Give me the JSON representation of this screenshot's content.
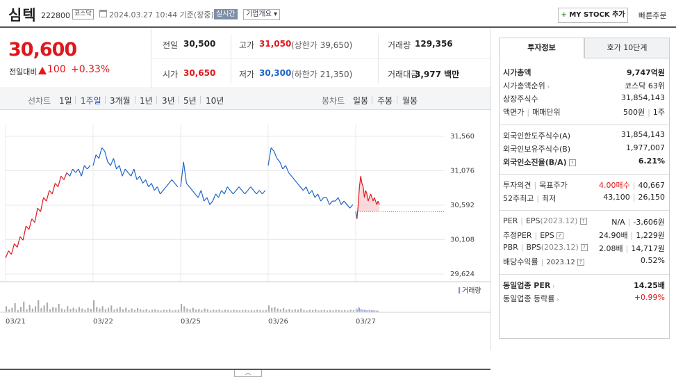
{
  "header": {
    "name": "심텍",
    "code": "222800",
    "market": "코스닥",
    "datetime": "2024.03.27 10:44 기준(장중)",
    "realtime": "실시간",
    "company_overview": "기업개요 ▾",
    "mystock_plus": "+",
    "mystock_label": "MY STOCK 추가",
    "quick_order": "빠른주문"
  },
  "price": {
    "current": "30,600",
    "change_label": "전일대비",
    "change_amount": "100",
    "change_percent": "+0.33%"
  },
  "stats": {
    "prev_close_label": "전일",
    "prev_close": "30,500",
    "high_label": "고가",
    "high": "31,050",
    "upper_limit_label": "(상한가",
    "upper_limit": "39,650)",
    "volume_label": "거래량",
    "volume": "129,356",
    "open_label": "시가",
    "open": "30,650",
    "low_label": "저가",
    "low": "30,300",
    "lower_limit_label": "(하한가",
    "lower_limit": "21,350)",
    "amount_label": "거래대금",
    "amount": "3,977 백만"
  },
  "periods": {
    "line_label": "선차트",
    "items": [
      "1일",
      "1주일",
      "3개월",
      "1년",
      "3년",
      "5년",
      "10년"
    ],
    "selected": "1주일",
    "candle_label": "봉차트",
    "candle_items": [
      "일봉",
      "주봉",
      "월봉"
    ]
  },
  "chart_data": {
    "type": "line",
    "x_labels": [
      "03/21",
      "03/22",
      "03/25",
      "03/26",
      "03/27"
    ],
    "y_ticks": [
      31560,
      31076,
      30592,
      30108,
      29624
    ],
    "ylim": [
      29624,
      31560
    ],
    "reference_price": 30500,
    "volume_label": "거래량",
    "sessions": [
      [
        29850,
        29950,
        29900,
        30050,
        30000,
        30150,
        30100,
        30300,
        30250,
        30400,
        30350,
        30550,
        30500,
        30700,
        30650,
        30800,
        30750,
        30900,
        30850,
        31000,
        30950,
        31050,
        31000,
        31100,
        31050,
        31100,
        31000,
        31150,
        31100,
        31150
      ],
      [
        31150,
        31300,
        31250,
        31400,
        31350,
        31200,
        31150,
        31250,
        31100,
        31150,
        31000,
        31100,
        31050,
        31000,
        31100,
        30950,
        31000,
        30900,
        30950,
        30850,
        30900,
        30800,
        30850,
        30750,
        30800,
        30850,
        30900,
        30950,
        30900,
        30850
      ],
      [
        30850,
        31200,
        30900,
        30850,
        30800,
        30750,
        30700,
        30800,
        30650,
        30700,
        30600,
        30650,
        30750,
        30700,
        30800,
        30750,
        30850,
        30800,
        30750,
        30800,
        30850,
        30800,
        30750,
        30800,
        30850,
        30800,
        30750,
        30800,
        30750,
        30800
      ],
      [
        31150,
        31400,
        31350,
        31250,
        31200,
        31100,
        31150,
        31050,
        31000,
        30950,
        30900,
        30850,
        30800,
        30850,
        30750,
        30800,
        30700,
        30750,
        30650,
        30700,
        30700,
        30600,
        30650,
        30650,
        30700,
        30600,
        30650,
        30600,
        30550,
        30600
      ],
      [
        30500,
        30400,
        30600,
        30850,
        31000,
        30900,
        30850,
        30700,
        30800,
        30750,
        30650,
        30700,
        30750,
        30700,
        30650,
        30700,
        30650,
        30600,
        30650,
        30600
      ]
    ],
    "volumes": [
      [
        14,
        6,
        10,
        22,
        4,
        12,
        26,
        6,
        18,
        8,
        14,
        30,
        9,
        16,
        24,
        6,
        12,
        10,
        20,
        8,
        5,
        14,
        7,
        10,
        6,
        12,
        8,
        5,
        9,
        7
      ],
      [
        30,
        12,
        8,
        14,
        6,
        10,
        16,
        5,
        8,
        12,
        6,
        10,
        4,
        8,
        5,
        9,
        6,
        4,
        7,
        3,
        5,
        6,
        4,
        3,
        5,
        4,
        6,
        3,
        4,
        5
      ],
      [
        20,
        14,
        8,
        6,
        10,
        5,
        7,
        4,
        8,
        6,
        3,
        5,
        4,
        6,
        3,
        5,
        4,
        3,
        5,
        4,
        3,
        4,
        5,
        3,
        4,
        3,
        5,
        4,
        3,
        4
      ],
      [
        16,
        10,
        12,
        8,
        6,
        9,
        5,
        7,
        4,
        6,
        5,
        8,
        4,
        3,
        5,
        4,
        6,
        3,
        4,
        5,
        3,
        4,
        3,
        5,
        4,
        3,
        4,
        3,
        5,
        4
      ],
      [
        8,
        6,
        12,
        10,
        7,
        5,
        6,
        4,
        5,
        3,
        4,
        5,
        3,
        4,
        3,
        4,
        3,
        2,
        3,
        2
      ]
    ],
    "colors": {
      "up": "#e0171b",
      "down": "#1e64c8",
      "grid": "#e8e8e8",
      "volume": "#aaaaaa"
    }
  },
  "tabs": {
    "invest": "투자정보",
    "order_book": "호가 10단계"
  },
  "info": {
    "market_cap_label": "시가총액",
    "market_cap": "9,747억원",
    "market_cap_rank_label": "시가총액순위",
    "market_cap_rank": "코스닥 63위",
    "shares_label": "상장주식수",
    "shares": "31,854,143",
    "par_label": "액면가",
    "unit_label": "매매단위",
    "par": "500원",
    "unit": "1주",
    "foreign_limit_label": "외국인한도주식수(A)",
    "foreign_limit": "31,854,143",
    "foreign_own_label": "외국인보유주식수(B)",
    "foreign_own": "1,977,007",
    "foreign_ratio_label": "외국인소진율(B/A)",
    "foreign_ratio": "6.21%",
    "opinion_label": "투자의견",
    "target_label": "목표주가",
    "opinion": "4.00매수",
    "target": "40,667",
    "w52_high_label": "52주최고",
    "w52_low_label": "최저",
    "w52_high": "43,100",
    "w52_low": "26,150",
    "per_label": "PER",
    "eps_label": "EPS",
    "eps_year": "(2023.12)",
    "per": "N/A",
    "eps": "-3,606원",
    "est_per_label": "추정PER",
    "est_eps_label": "EPS",
    "est_per": "24.90배",
    "est_eps": "1,229원",
    "pbr_label": "PBR",
    "bps_label": "BPS",
    "bps_year": "(2023.12)",
    "pbr": "2.08배",
    "bps": "14,717원",
    "div_label": "배당수익률",
    "div_year": "2023.12",
    "div": "0.52%",
    "ind_per_label": "동일업종 PER",
    "ind_per": "14.25배",
    "ind_change_label": "동일업종 등락률",
    "ind_change": "+0.99%"
  },
  "collapse": "︿"
}
